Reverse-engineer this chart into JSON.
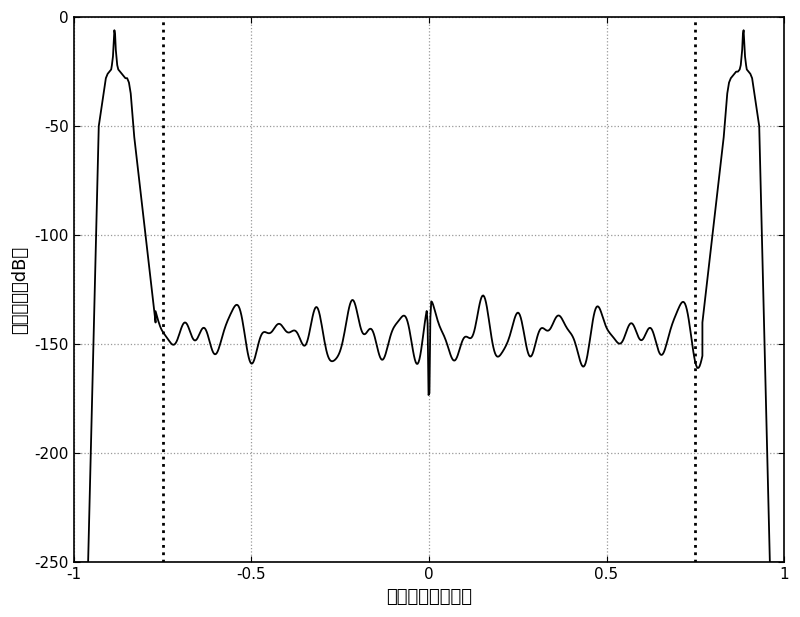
{
  "xlim": [
    -1.0,
    1.0
  ],
  "ylim": [
    -250,
    0
  ],
  "xlabel": "经正规化差分输入",
  "ylabel": "量化噪声（dB）",
  "xticks": [
    -1.0,
    -0.5,
    0.0,
    0.5,
    1.0
  ],
  "yticks": [
    0,
    -50,
    -100,
    -150,
    -200,
    -250
  ],
  "vline1": -0.75,
  "vline2": 0.75,
  "line_color": "#000000",
  "background_color": "#ffffff",
  "grid_color": "#999999",
  "vline_color": "#000000",
  "font_size_label": 13,
  "font_size_tick": 11,
  "line_width": 1.3
}
